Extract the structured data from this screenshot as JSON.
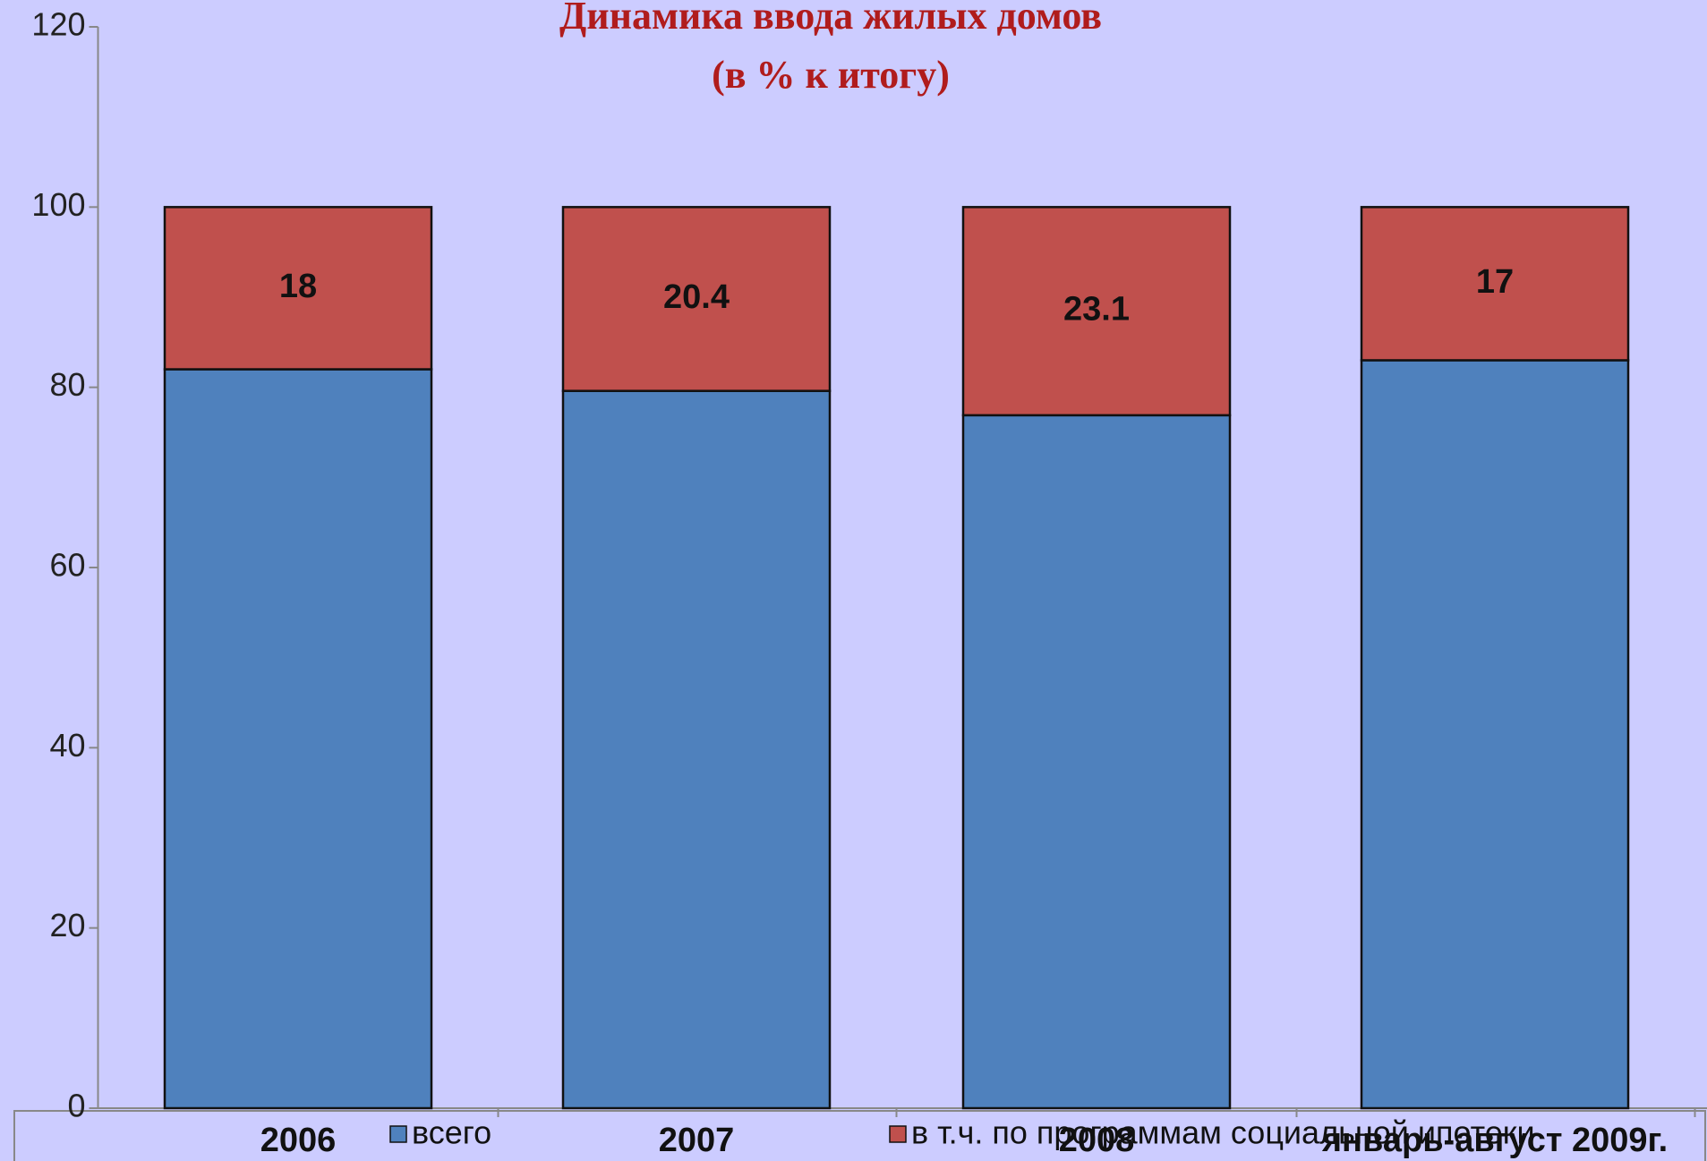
{
  "chart_data": {
    "type": "stacked_bar",
    "title": "Динамика ввода жилых домов",
    "subtitle": "(в % к итогу)",
    "categories": [
      "2006",
      "2007",
      "2008",
      "январь-август 2009г."
    ],
    "series": [
      {
        "name": "всего",
        "color": "#4f81bd",
        "values": [
          82,
          79.6,
          76.9,
          83
        ]
      },
      {
        "name": "в т.ч. по программам социальной ипотеки",
        "color": "#c0504d",
        "values": [
          18,
          20.4,
          23.1,
          17
        ],
        "show_labels": true
      }
    ],
    "ylim": [
      0,
      120
    ],
    "yticks": [
      0,
      20,
      40,
      60,
      80,
      100,
      120
    ],
    "legend": "bottom"
  }
}
